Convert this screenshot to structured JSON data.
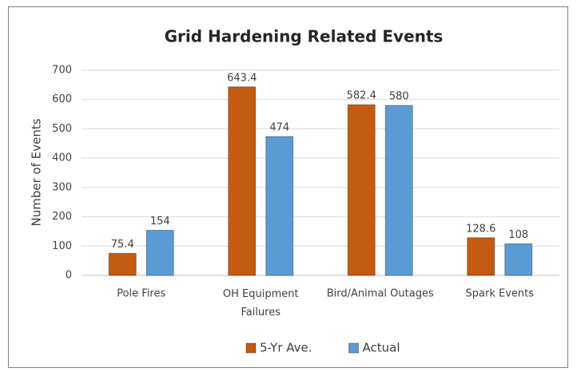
{
  "chart_data": {
    "type": "bar",
    "title": "Grid Hardening Related Events",
    "y_label": "Number of Events",
    "categories": [
      "Pole Fires",
      "OH Equipment Failures",
      "Bird/Animal Outages",
      "Spark Events"
    ],
    "series": [
      {
        "name": "5-Yr Ave.",
        "color": "#c55a11",
        "values": [
          75.4,
          643.4,
          582.4,
          128.6
        ]
      },
      {
        "name": "Actual",
        "color": "#5b9bd5",
        "values": [
          154,
          474,
          580,
          108
        ]
      }
    ],
    "ylim": [
      0,
      700
    ],
    "yticks": [
      0,
      100,
      200,
      300,
      400,
      500,
      600,
      700
    ],
    "grid": true,
    "legend": "bottom"
  }
}
